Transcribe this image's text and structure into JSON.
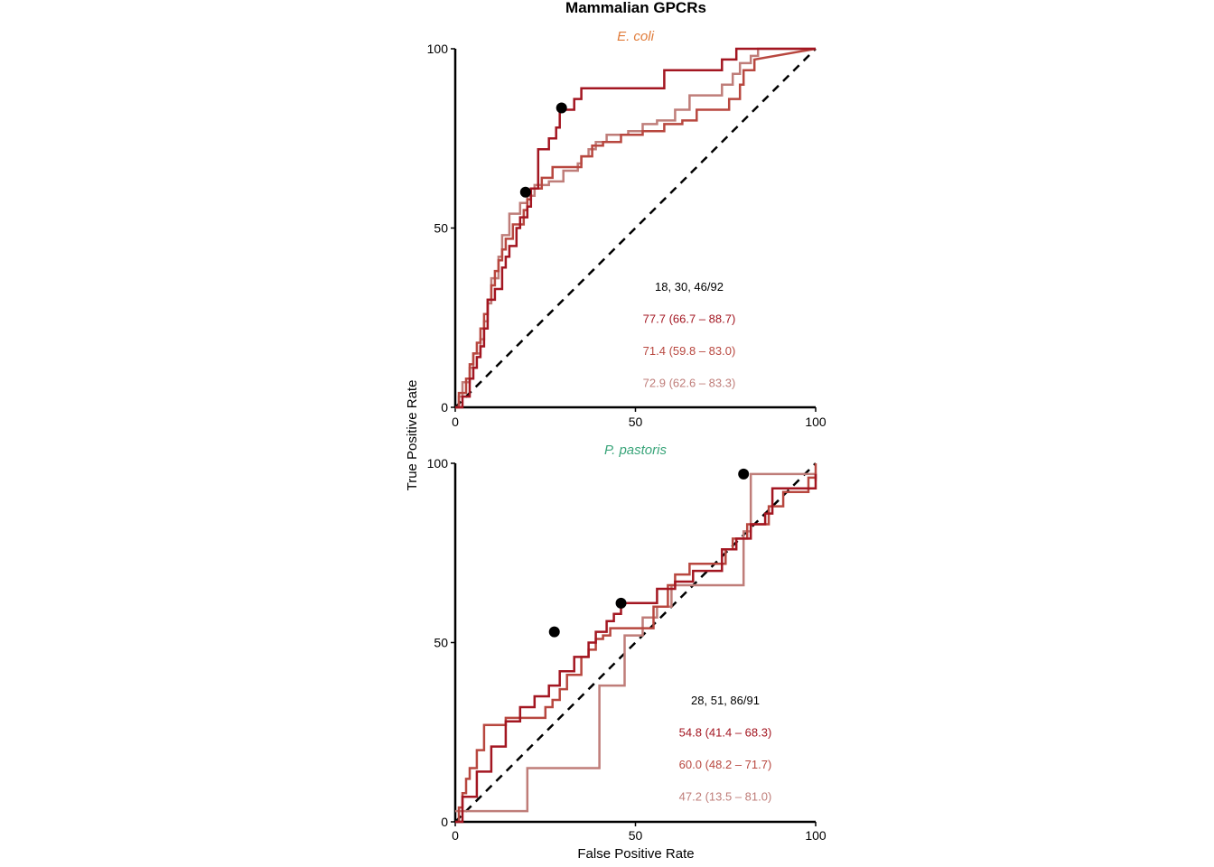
{
  "chart_data": {
    "type": "line",
    "title": "Mammalian GPCRs",
    "xlabel": "False Positive Rate",
    "ylabel": "True Positive Rate",
    "colors": {
      "series1": "#a31621",
      "series2": "#b8473f",
      "series3": "#bf7d79",
      "diagonal": "#000000",
      "point": "#000000",
      "ecoli_title": "#e07b39",
      "ppastoris_title": "#3aa57a"
    },
    "panels": [
      {
        "subtitle": "E. coli",
        "xlim": [
          0,
          100
        ],
        "ylim": [
          0,
          100
        ],
        "xticks": [
          "0",
          "50",
          "100"
        ],
        "yticks": [
          "0",
          "50",
          "100"
        ],
        "count_text": "18, 30, 46/92",
        "series": [
          {
            "label": "77.7 (66.7 – 88.7)",
            "x": [
              0,
              2,
              2,
              4,
              4,
              5,
              5,
              6,
              6,
              7,
              7,
              8,
              8,
              9,
              9,
              11,
              11,
              13,
              13,
              14,
              14,
              15,
              15,
              17,
              17,
              18,
              18,
              20,
              20,
              21,
              21,
              23,
              23,
              26,
              26,
              28,
              28,
              29,
              29,
              30,
              30,
              33,
              33,
              35,
              35,
              40,
              40,
              58,
              58,
              74,
              74,
              78,
              78,
              100
            ],
            "y": [
              0,
              0,
              3,
              3,
              8,
              8,
              11,
              11,
              14,
              14,
              17,
              17,
              22,
              22,
              30,
              30,
              33,
              33,
              39,
              39,
              42,
              42,
              45,
              45,
              50,
              50,
              53,
              53,
              56,
              56,
              61,
              61,
              72,
              72,
              75,
              75,
              78,
              78,
              83,
              83,
              83,
              83,
              86,
              86,
              89,
              89,
              89,
              89,
              94,
              94,
              97,
              97,
              100,
              100
            ]
          },
          {
            "label": "71.4 (59.8 – 83.0)",
            "x": [
              0,
              1,
              1,
              3,
              3,
              4,
              4,
              5,
              5,
              6,
              6,
              7,
              7,
              8,
              8,
              9,
              9,
              10,
              10,
              11,
              11,
              12,
              12,
              13,
              13,
              14,
              14,
              16,
              16,
              19,
              19,
              20,
              20,
              21,
              21,
              22,
              22,
              24,
              24,
              27,
              27,
              35,
              35,
              38,
              38,
              41,
              41,
              46,
              46,
              52,
              52,
              58,
              58,
              63,
              63,
              67,
              67,
              76,
              76,
              79,
              79,
              80,
              80,
              83,
              83,
              100
            ],
            "y": [
              0,
              0,
              4,
              4,
              8,
              8,
              12,
              12,
              15,
              15,
              18,
              18,
              22,
              22,
              26,
              26,
              30,
              30,
              34,
              34,
              38,
              38,
              41,
              41,
              44,
              44,
              47,
              47,
              51,
              51,
              55,
              55,
              58,
              58,
              61,
              61,
              61,
              61,
              64,
              64,
              67,
              67,
              70,
              70,
              73,
              73,
              74,
              74,
              76,
              76,
              77,
              77,
              79,
              79,
              80,
              80,
              83,
              83,
              86,
              86,
              90,
              90,
              94,
              94,
              97,
              100
            ]
          },
          {
            "label": "72.9 (62.6 – 83.3)",
            "x": [
              0,
              1,
              1,
              2,
              2,
              4,
              4,
              5,
              5,
              7,
              7,
              8,
              8,
              9,
              9,
              10,
              10,
              12,
              12,
              13,
              13,
              15,
              15,
              18,
              18,
              20,
              20,
              22,
              22,
              26,
              26,
              30,
              30,
              34,
              34,
              35,
              35,
              37,
              37,
              39,
              39,
              42,
              42,
              45,
              45,
              48,
              48,
              52,
              52,
              56,
              56,
              61,
              61,
              65,
              65,
              74,
              74,
              77,
              77,
              79,
              79,
              82,
              82,
              84,
              84,
              100
            ],
            "y": [
              0,
              0,
              3,
              3,
              7,
              7,
              11,
              11,
              15,
              15,
              19,
              19,
              24,
              24,
              29,
              29,
              36,
              36,
              42,
              42,
              48,
              48,
              54,
              54,
              57,
              57,
              59,
              59,
              62,
              62,
              63,
              63,
              66,
              66,
              68,
              68,
              70,
              70,
              72,
              72,
              74,
              74,
              76,
              76,
              76,
              76,
              77,
              77,
              79,
              79,
              80,
              80,
              83,
              83,
              87,
              87,
              90,
              90,
              93,
              93,
              96,
              96,
              98,
              98,
              100,
              100
            ]
          }
        ],
        "points": [
          {
            "x": 19.5,
            "y": 60
          },
          {
            "x": 29.5,
            "y": 83.5
          }
        ]
      },
      {
        "subtitle": "P. pastoris",
        "xlim": [
          0,
          100
        ],
        "ylim": [
          0,
          100
        ],
        "xticks": [
          "0",
          "50",
          "100"
        ],
        "yticks": [
          "0",
          "50",
          "100"
        ],
        "count_text": "28, 51, 86/91",
        "series": [
          {
            "label": "54.8 (41.4 – 68.3)",
            "x": [
              0,
              2,
              2,
              6,
              6,
              10,
              10,
              14,
              14,
              18,
              18,
              22,
              22,
              26,
              26,
              29,
              29,
              33,
              33,
              37,
              37,
              39,
              39,
              42,
              42,
              44,
              44,
              46,
              46,
              56,
              56,
              61,
              61,
              66,
              66,
              74,
              74,
              78,
              78,
              82,
              82,
              86,
              86,
              88,
              88,
              100,
              100
            ],
            "y": [
              0,
              0,
              7,
              7,
              14,
              14,
              21,
              21,
              28,
              28,
              32,
              32,
              35,
              35,
              38,
              38,
              42,
              42,
              46,
              46,
              50,
              50,
              53,
              53,
              56,
              56,
              58,
              58,
              61,
              61,
              65,
              65,
              67,
              67,
              70,
              70,
              76,
              76,
              79,
              79,
              83,
              83,
              86,
              86,
              93,
              93,
              97
            ]
          },
          {
            "label": "60.0 (48.2 – 71.7)",
            "x": [
              0,
              1,
              1,
              2,
              2,
              3,
              3,
              4,
              4,
              6,
              6,
              8,
              8,
              14,
              14,
              25,
              25,
              27,
              27,
              29,
              29,
              31,
              31,
              35,
              35,
              37,
              37,
              39,
              39,
              41,
              41,
              43,
              43,
              55,
              55,
              59,
              59,
              61,
              61,
              65,
              65,
              75,
              75,
              77,
              77,
              81,
              81,
              87,
              87,
              91,
              91,
              98,
              98,
              100,
              100
            ],
            "y": [
              0,
              0,
              4,
              4,
              8,
              8,
              12,
              12,
              15,
              15,
              20,
              20,
              27,
              27,
              29,
              29,
              32,
              32,
              34,
              34,
              37,
              37,
              41,
              41,
              46,
              46,
              48,
              48,
              51,
              51,
              52,
              52,
              54,
              54,
              60,
              60,
              66,
              66,
              69,
              69,
              72,
              72,
              76,
              76,
              79,
              79,
              83,
              83,
              88,
              88,
              92,
              92,
              96,
              96,
              100
            ]
          },
          {
            "label": "47.2 (13.5 – 81.0)",
            "x": [
              0,
              20,
              20,
              39,
              39,
              40,
              40,
              47,
              47,
              52,
              52,
              56,
              56,
              60,
              60,
              80,
              80,
              82,
              82,
              100,
              100
            ],
            "y": [
              3,
              3,
              15,
              15,
              15,
              15,
              38,
              38,
              52,
              52,
              57,
              57,
              60,
              60,
              66,
              66,
              81,
              81,
              97,
              97,
              95
            ]
          }
        ],
        "points": [
          {
            "x": 27.5,
            "y": 53
          },
          {
            "x": 46,
            "y": 61
          },
          {
            "x": 80,
            "y": 97
          }
        ]
      }
    ]
  }
}
